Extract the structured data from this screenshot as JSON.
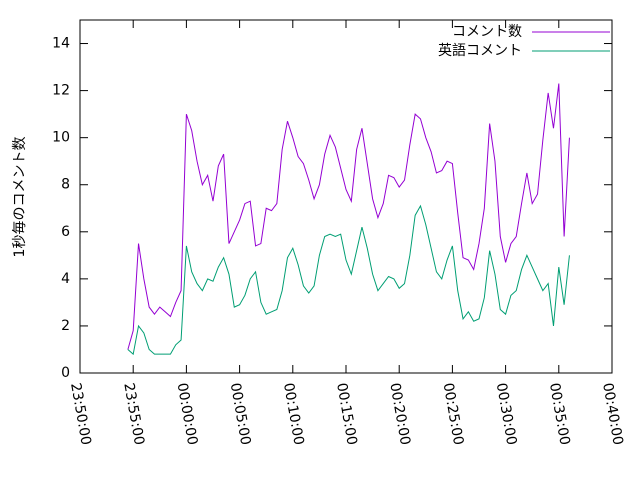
{
  "chart_data": {
    "type": "line",
    "ylabel": "1秒毎のコメント数",
    "x": [
      "23:54:30",
      "23:55:00",
      "23:55:30",
      "23:56:00",
      "23:56:30",
      "23:57:00",
      "23:57:30",
      "23:58:00",
      "23:58:30",
      "23:59:00",
      "23:59:30",
      "00:00:00",
      "00:00:30",
      "00:01:00",
      "00:01:30",
      "00:02:00",
      "00:02:30",
      "00:03:00",
      "00:03:30",
      "00:04:00",
      "00:04:30",
      "00:05:00",
      "00:05:30",
      "00:06:00",
      "00:06:30",
      "00:07:00",
      "00:07:30",
      "00:08:00",
      "00:08:30",
      "00:09:00",
      "00:09:30",
      "00:10:00",
      "00:10:30",
      "00:11:00",
      "00:11:30",
      "00:12:00",
      "00:12:30",
      "00:13:00",
      "00:13:30",
      "00:14:00",
      "00:14:30",
      "00:15:00",
      "00:15:30",
      "00:16:00",
      "00:16:30",
      "00:17:00",
      "00:17:30",
      "00:18:00",
      "00:18:30",
      "00:19:00",
      "00:19:30",
      "00:20:00",
      "00:20:30",
      "00:21:00",
      "00:21:30",
      "00:22:00",
      "00:22:30",
      "00:23:00",
      "00:23:30",
      "00:24:00",
      "00:24:30",
      "00:25:00",
      "00:25:30",
      "00:26:00",
      "00:26:30",
      "00:27:00",
      "00:27:30",
      "00:28:00",
      "00:28:30",
      "00:29:00",
      "00:29:30",
      "00:30:00",
      "00:30:30",
      "00:31:00",
      "00:31:30",
      "00:32:00",
      "00:32:30",
      "00:33:00",
      "00:33:30",
      "00:34:00",
      "00:34:30",
      "00:35:00",
      "00:35:30",
      "00:36:00"
    ],
    "series": [
      {
        "name": "コメント数",
        "color": "#9400d3",
        "values": [
          1.0,
          1.8,
          5.5,
          4.0,
          2.8,
          2.5,
          2.8,
          2.6,
          2.4,
          3.0,
          3.5,
          11.0,
          10.3,
          9.0,
          8.0,
          8.4,
          7.3,
          8.8,
          9.3,
          5.5,
          6.0,
          6.5,
          7.2,
          7.3,
          5.4,
          5.5,
          7.0,
          6.9,
          7.2,
          9.5,
          10.7,
          10.0,
          9.2,
          8.9,
          8.2,
          7.4,
          8.0,
          9.3,
          10.1,
          9.6,
          8.7,
          7.8,
          7.3,
          9.5,
          10.4,
          8.9,
          7.4,
          6.6,
          7.2,
          8.4,
          8.3,
          7.9,
          8.2,
          9.7,
          11.0,
          10.8,
          10.0,
          9.4,
          8.5,
          8.6,
          9.0,
          8.9,
          6.8,
          4.9,
          4.8,
          4.4,
          5.5,
          7.0,
          10.6,
          9.0,
          5.8,
          4.7,
          5.5,
          5.8,
          7.2,
          8.5,
          7.2,
          7.6,
          9.9,
          11.9,
          10.4,
          12.3,
          5.8,
          10.0
        ]
      },
      {
        "name": "英語コメント",
        "color": "#009e73",
        "values": [
          1.0,
          0.8,
          2.0,
          1.7,
          1.0,
          0.8,
          0.8,
          0.8,
          0.8,
          1.2,
          1.4,
          5.4,
          4.3,
          3.8,
          3.5,
          4.0,
          3.9,
          4.5,
          4.9,
          4.2,
          2.8,
          2.9,
          3.3,
          4.0,
          4.3,
          3.0,
          2.5,
          2.6,
          2.7,
          3.5,
          4.9,
          5.3,
          4.6,
          3.7,
          3.4,
          3.7,
          5.0,
          5.8,
          5.9,
          5.8,
          5.9,
          4.8,
          4.2,
          5.2,
          6.2,
          5.3,
          4.2,
          3.5,
          3.8,
          4.1,
          4.0,
          3.6,
          3.8,
          5.0,
          6.7,
          7.1,
          6.3,
          5.3,
          4.3,
          4.0,
          4.8,
          5.4,
          3.5,
          2.3,
          2.6,
          2.2,
          2.3,
          3.2,
          5.2,
          4.2,
          2.7,
          2.5,
          3.3,
          3.5,
          4.4,
          5.0,
          4.5,
          4.0,
          3.5,
          3.8,
          2.0,
          4.5,
          2.9,
          5.0
        ]
      }
    ],
    "xlim": [
      "23:50:00",
      "00:40:00"
    ],
    "xticks": [
      "23:50:00",
      "23:55:00",
      "00:00:00",
      "00:05:00",
      "00:10:00",
      "00:15:00",
      "00:20:00",
      "00:25:00",
      "00:30:00",
      "00:35:00",
      "00:40:00"
    ],
    "ylim": [
      0,
      15
    ],
    "yticks": [
      0,
      2,
      4,
      6,
      8,
      10,
      12,
      14
    ],
    "legend": "upper right"
  }
}
